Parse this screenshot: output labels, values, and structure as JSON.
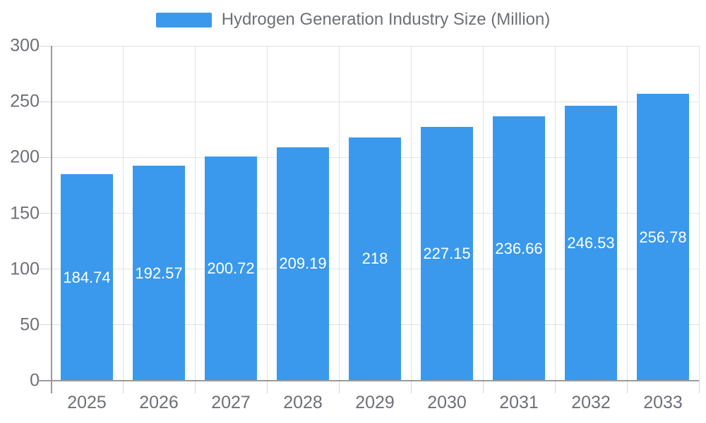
{
  "legend": {
    "label": "Hydrogen Generation Industry Size (Million)"
  },
  "colors": {
    "bar": "#3A99EC",
    "grid": "#E3E3E3",
    "tick": "#D6D6D6",
    "axis": "#9A9A9A",
    "axis_text": "#6E7079",
    "value_text": "#FFFFFF",
    "background": "#FFFFFF"
  },
  "chart_data": {
    "type": "bar",
    "title": "Hydrogen Generation Industry Size (Million)",
    "categories": [
      "2025",
      "2026",
      "2027",
      "2028",
      "2029",
      "2030",
      "2031",
      "2032",
      "2033"
    ],
    "values": [
      184.74,
      192.57,
      200.72,
      209.19,
      218,
      227.15,
      236.66,
      246.53,
      256.78
    ],
    "value_labels": [
      "184.74",
      "192.57",
      "200.72",
      "209.19",
      "218",
      "227.15",
      "236.66",
      "246.53",
      "256.78"
    ],
    "series_name": "Hydrogen Generation Industry Size (Million)",
    "xlabel": "",
    "ylabel": "",
    "ylim": [
      0,
      300
    ],
    "yticks": [
      0,
      50,
      100,
      150,
      200,
      250,
      300
    ],
    "legend_position": "top",
    "grid": true,
    "value_label_position": "inside-middle"
  }
}
